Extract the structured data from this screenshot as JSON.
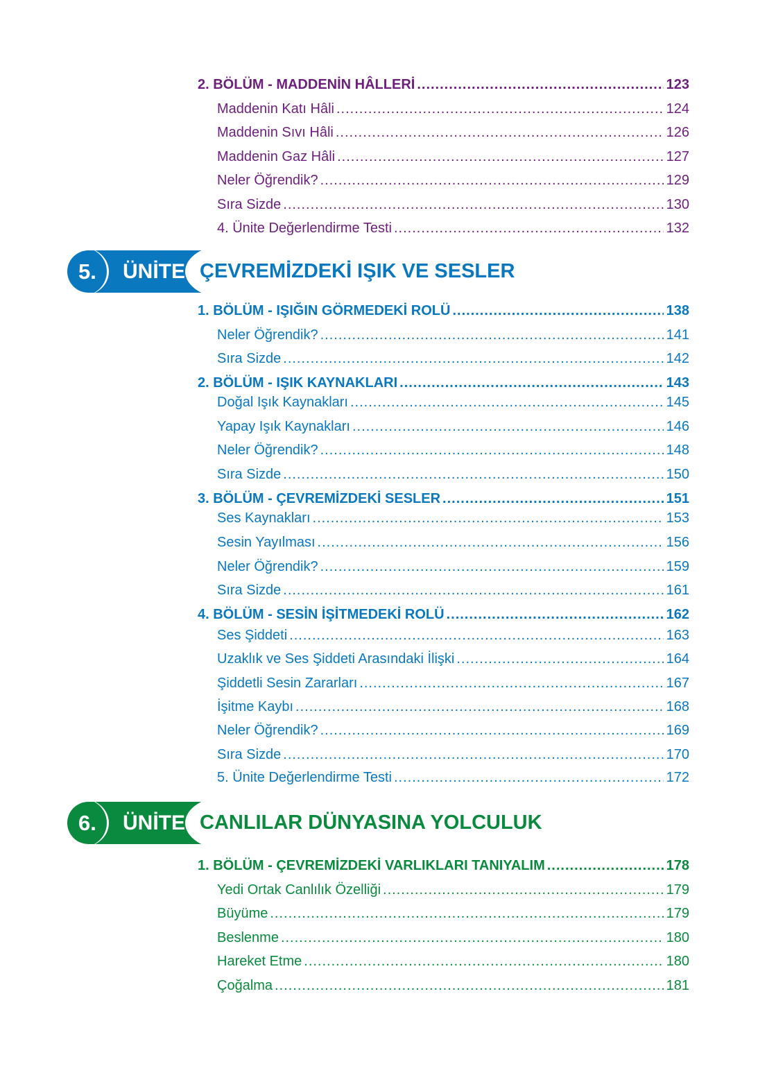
{
  "colors": {
    "purple": "#6d1f7c",
    "blue": "#0a78bf",
    "green": "#0a8a3e"
  },
  "section4": {
    "entries": [
      {
        "level": 1,
        "title": "2. BÖLÜM - MADDENİN HÂLLERİ",
        "page": "123"
      },
      {
        "level": 2,
        "title": "Maddenin Katı Hâli",
        "page": "124"
      },
      {
        "level": 2,
        "title": "Maddenin Sıvı Hâli",
        "page": "126"
      },
      {
        "level": 2,
        "title": "Maddenin Gaz Hâli",
        "page": "127"
      },
      {
        "level": 2,
        "title": "Neler Öğrendik?",
        "page": "129"
      },
      {
        "level": 2,
        "title": "Sıra Sizde",
        "page": "130"
      },
      {
        "level": 2,
        "title": "4. Ünite Değerlendirme Testi",
        "page": "132"
      }
    ]
  },
  "unit5": {
    "number": "5.",
    "label": "ÜNİTE",
    "title": "ÇEVREMİZDEKİ IŞIK VE SESLER",
    "entries": [
      {
        "level": 1,
        "title": "1. BÖLÜM - IŞIĞIN GÖRMEDEKİ ROLÜ",
        "page": "138"
      },
      {
        "level": 2,
        "title": "Neler Öğrendik?",
        "page": "141"
      },
      {
        "level": 2,
        "title": "Sıra Sizde",
        "page": "142"
      },
      {
        "level": 1,
        "title": "2. BÖLÜM - IŞIK KAYNAKLARI",
        "page": "143"
      },
      {
        "level": 2,
        "title": "Doğal Işık Kaynakları",
        "page": "145"
      },
      {
        "level": 2,
        "title": "Yapay Işık Kaynakları",
        "page": "146"
      },
      {
        "level": 2,
        "title": "Neler Öğrendik?",
        "page": "148"
      },
      {
        "level": 2,
        "title": "Sıra Sizde",
        "page": "150"
      },
      {
        "level": 1,
        "title": "3. BÖLÜM - ÇEVREMİZDEKİ SESLER",
        "page": "151"
      },
      {
        "level": 2,
        "title": "Ses Kaynakları",
        "page": "153"
      },
      {
        "level": 2,
        "title": "Sesin Yayılması",
        "page": "156"
      },
      {
        "level": 2,
        "title": "Neler Öğrendik?",
        "page": "159"
      },
      {
        "level": 2,
        "title": "Sıra Sizde",
        "page": "161"
      },
      {
        "level": 1,
        "title": "4. BÖLÜM - SESİN İŞİTMEDEKİ ROLÜ",
        "page": "162"
      },
      {
        "level": 2,
        "title": "Ses Şiddeti",
        "page": "163"
      },
      {
        "level": 2,
        "title": "Uzaklık ve Ses Şiddeti Arasındaki İlişki",
        "page": "164"
      },
      {
        "level": 2,
        "title": "Şiddetli Sesin Zararları",
        "page": "167"
      },
      {
        "level": 2,
        "title": "İşitme Kaybı",
        "page": "168"
      },
      {
        "level": 2,
        "title": "Neler Öğrendik?",
        "page": "169"
      },
      {
        "level": 2,
        "title": "Sıra Sizde",
        "page": "170"
      },
      {
        "level": 2,
        "title": "5. Ünite Değerlendirme Testi",
        "page": "172"
      }
    ]
  },
  "unit6": {
    "number": "6.",
    "label": "ÜNİTE",
    "title": "CANLILAR DÜNYASINA YOLCULUK",
    "entries": [
      {
        "level": 1,
        "title": "1. BÖLÜM - ÇEVREMİZDEKİ VARLIKLARI TANIYALIM",
        "page": "178"
      },
      {
        "level": 2,
        "title": "Yedi Ortak Canlılık Özelliği",
        "page": "179"
      },
      {
        "level": 2,
        "title": "Büyüme",
        "page": "179"
      },
      {
        "level": 2,
        "title": "Beslenme",
        "page": "180"
      },
      {
        "level": 2,
        "title": "Hareket Etme",
        "page": "180"
      },
      {
        "level": 2,
        "title": "Çoğalma",
        "page": "181"
      }
    ]
  }
}
